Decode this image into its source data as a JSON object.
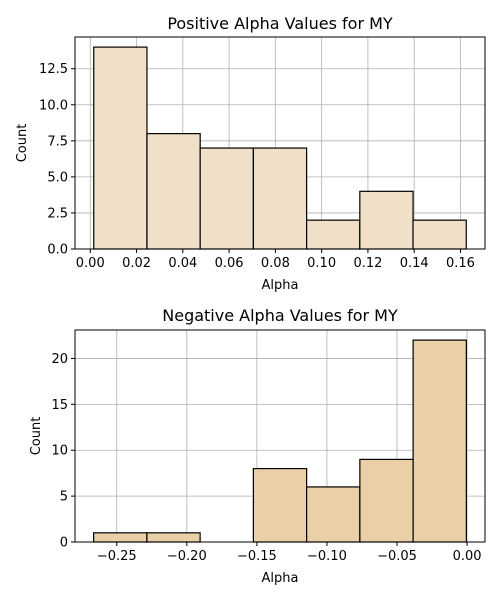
{
  "chart_data": [
    {
      "type": "bar",
      "title": "Positive Alpha Values for MY",
      "xlabel": "Alpha",
      "ylabel": "Count",
      "bar_color": "#f0e0c8",
      "bins": [
        {
          "start": 0.0015,
          "end": 0.0245,
          "count": 14
        },
        {
          "start": 0.0245,
          "end": 0.0475,
          "count": 8
        },
        {
          "start": 0.0475,
          "end": 0.0705,
          "count": 7
        },
        {
          "start": 0.0705,
          "end": 0.0935,
          "count": 7
        },
        {
          "start": 0.0935,
          "end": 0.1165,
          "count": 2
        },
        {
          "start": 0.1165,
          "end": 0.1395,
          "count": 4
        },
        {
          "start": 0.1395,
          "end": 0.1625,
          "count": 2
        }
      ],
      "xlim": [
        -0.0066,
        0.1706
      ],
      "ylim": [
        0,
        14.7
      ],
      "xticks": [
        0.0,
        0.02,
        0.04,
        0.06,
        0.08,
        0.1,
        0.12,
        0.14,
        0.16
      ],
      "xtick_labels": [
        "0.00",
        "0.02",
        "0.04",
        "0.06",
        "0.08",
        "0.10",
        "0.12",
        "0.14",
        "0.16"
      ],
      "yticks": [
        0,
        2.5,
        5,
        7.5,
        10,
        12.5
      ],
      "ytick_labels": [
        "0.0",
        "2.5",
        "5.0",
        "7.5",
        "10.0",
        "12.5"
      ],
      "grid": true
    },
    {
      "type": "bar",
      "title": "Negative Alpha Values for MY",
      "xlabel": "Alpha",
      "ylabel": "Count",
      "bar_color": "#ebcfa6",
      "bins": [
        {
          "start": -0.2665,
          "end": -0.2285,
          "count": 1
        },
        {
          "start": -0.2285,
          "end": -0.1905,
          "count": 1
        },
        {
          "start": -0.1905,
          "end": -0.1525,
          "count": 0
        },
        {
          "start": -0.1525,
          "end": -0.1145,
          "count": 8
        },
        {
          "start": -0.1145,
          "end": -0.0765,
          "count": 6
        },
        {
          "start": -0.0765,
          "end": -0.0385,
          "count": 9
        },
        {
          "start": -0.0385,
          "end": -0.0005,
          "count": 22
        }
      ],
      "xlim": [
        -0.2798,
        0.0128
      ],
      "ylim": [
        0,
        23.1
      ],
      "xticks": [
        -0.25,
        -0.2,
        -0.15,
        -0.1,
        -0.05,
        0.0
      ],
      "xtick_labels": [
        "−0.25",
        "−0.20",
        "−0.15",
        "−0.10",
        "−0.05",
        "0.00"
      ],
      "yticks": [
        0,
        5,
        10,
        15,
        20
      ],
      "ytick_labels": [
        "0",
        "5",
        "10",
        "15",
        "20"
      ],
      "grid": true
    }
  ]
}
